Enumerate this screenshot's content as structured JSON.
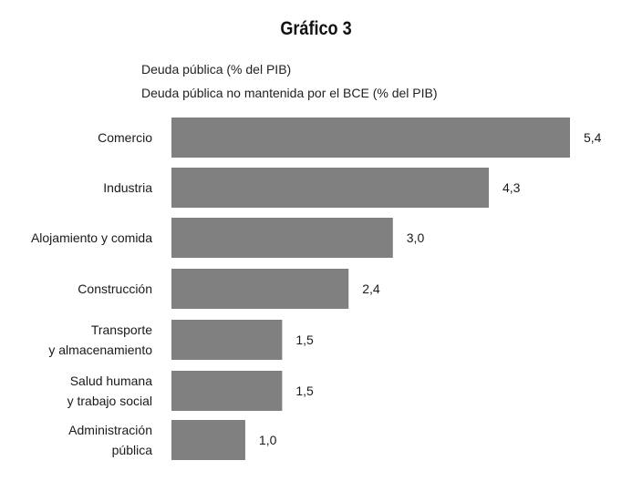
{
  "title": "Gráfico 3",
  "subtitles": [
    "Deuda pública (% del PIB)",
    "Deuda pública no mantenida por el BCE (% del PIB)"
  ],
  "colors": {
    "bar": "#808080",
    "text": "#1a1a1a"
  },
  "chart_data": {
    "type": "bar",
    "orientation": "horizontal",
    "categories": [
      [
        "Comercio"
      ],
      [
        "Industria"
      ],
      [
        "Alojamiento y comida"
      ],
      [
        "Construcción"
      ],
      [
        "Transporte",
        "y almacenamiento"
      ],
      [
        "Salud humana",
        "y trabajo social"
      ],
      [
        "Administración",
        "pública"
      ]
    ],
    "values": [
      5.4,
      4.3,
      3.0,
      2.4,
      1.5,
      1.5,
      1.0
    ],
    "value_labels": [
      "5,4",
      "4,3",
      "3,0",
      "2,4",
      "1,5",
      "1,5",
      "1,0"
    ],
    "xlim": [
      0,
      5.4
    ],
    "grid": false,
    "legend": "none"
  }
}
